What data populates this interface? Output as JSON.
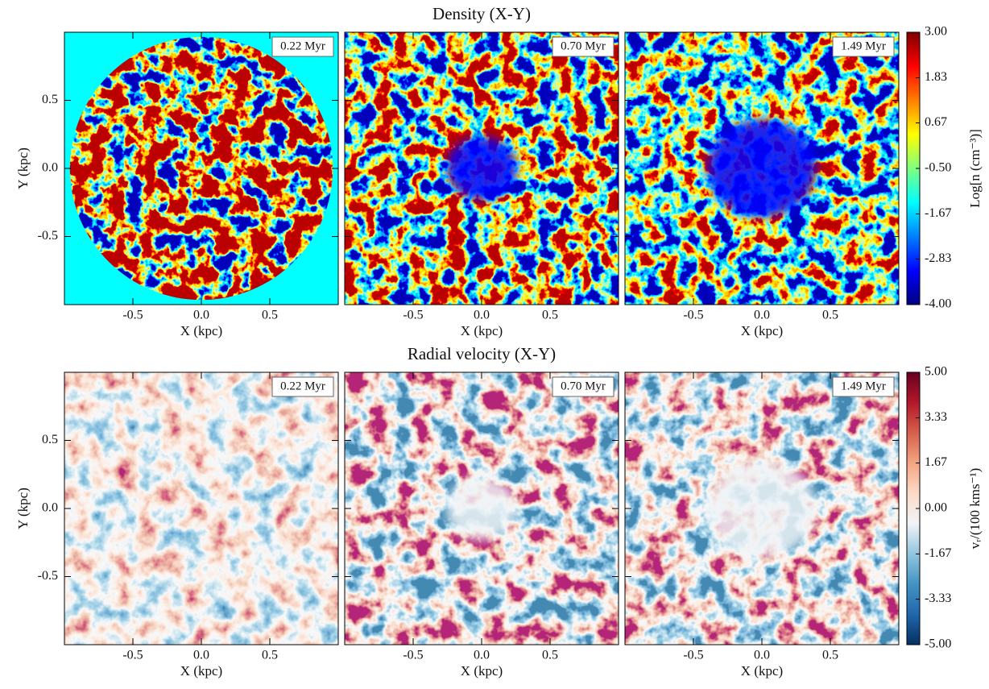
{
  "chart_data": [
    {
      "type": "image",
      "title": "Density (X-Y)",
      "panels": [
        "0.22 Myr",
        "0.70 Myr",
        "1.49 Myr"
      ],
      "x_label": "X (kpc)",
      "y_label": "Y (kpc)",
      "xlim": [
        -1,
        1
      ],
      "ylim": [
        -1,
        1
      ],
      "xticks": [
        -0.5,
        {
          "value": 0,
          "label": "0.0"
        },
        0.5
      ],
      "yticks": [
        -0.5,
        {
          "value": 0,
          "label": "0.0"
        },
        0.5
      ],
      "colorbar_label": "Log[n (cm⁻³)]",
      "clim": [
        -4,
        3
      ],
      "cticks": [
        {
          "value": -4,
          "label": "-4.00"
        },
        {
          "value": -2.83,
          "label": "-2.83"
        },
        {
          "value": -1.67,
          "label": "-1.67"
        },
        {
          "value": -0.5,
          "label": "-0.50"
        },
        {
          "value": 0.67,
          "label": "0.67"
        },
        {
          "value": 1.83,
          "label": "1.83"
        },
        {
          "value": 3,
          "label": "3.00"
        }
      ],
      "colormap": [
        "#00007f",
        "#0000ff",
        "#007fff",
        "#00ffff",
        "#7fff7f",
        "#ffff00",
        "#ff7f00",
        "#ff0000",
        "#7f0000"
      ]
    },
    {
      "type": "image",
      "title": "Radial velocity (X-Y)",
      "panels": [
        "0.22 Myr",
        "0.70 Myr",
        "1.49 Myr"
      ],
      "x_label": "X (kpc)",
      "y_label": "Y (kpc)",
      "xlim": [
        -1,
        1
      ],
      "ylim": [
        -1,
        1
      ],
      "xticks": [
        -0.5,
        {
          "value": 0,
          "label": "0.0"
        },
        0.5
      ],
      "yticks": [
        -0.5,
        {
          "value": 0,
          "label": "0.0"
        },
        0.5
      ],
      "colorbar_label": "vᵣ/(100 kms⁻¹)",
      "clim": [
        -5,
        5
      ],
      "cticks": [
        {
          "value": -5,
          "label": "-5.00"
        },
        {
          "value": -3.33,
          "label": "-3.33"
        },
        {
          "value": -1.67,
          "label": "-1.67"
        },
        {
          "value": 0,
          "label": "0.00"
        },
        {
          "value": 1.67,
          "label": "1.67"
        },
        {
          "value": 3.33,
          "label": "3.33"
        },
        {
          "value": 5,
          "label": "5.00"
        }
      ],
      "colormap": [
        "#053061",
        "#2166ac",
        "#4393c3",
        "#92c5de",
        "#f0f4f7",
        "#fddbc7",
        "#f4a582",
        "#d6604d",
        "#b2182b",
        "#67001f"
      ]
    }
  ]
}
